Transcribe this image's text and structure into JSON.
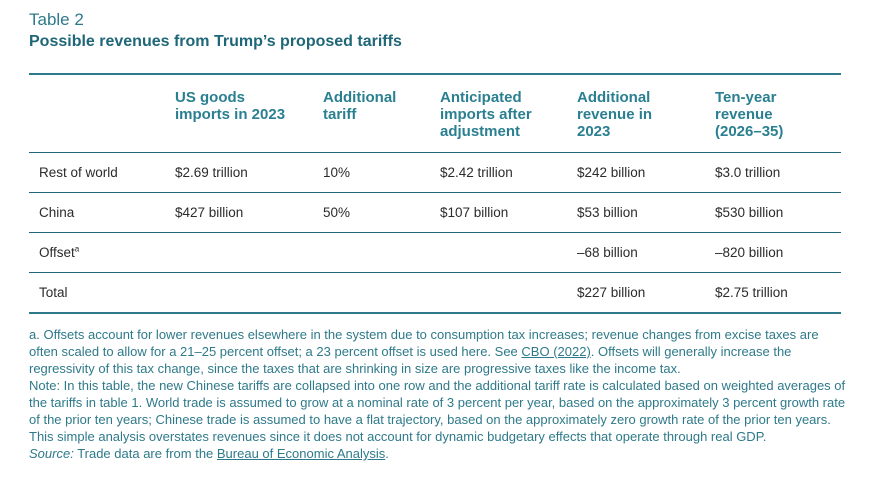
{
  "header": {
    "label": "Table 2",
    "title": "Possible revenues from Trump’s proposed tariffs"
  },
  "table": {
    "columns": [
      "",
      "US goods\nimports in 2023",
      "Additional\ntariff",
      "Anticipated\nimports after\nadjustment",
      "Additional\nrevenue in\n2023",
      "Ten-year\nrevenue\n(2026–35)"
    ],
    "rows": [
      {
        "label": "Rest of world",
        "sup": "",
        "cells": [
          "$2.69 trillion",
          "10%",
          "$2.42 trillion",
          "$242 billion",
          "$3.0 trillion"
        ]
      },
      {
        "label": "China",
        "sup": "",
        "cells": [
          "$427 billion",
          "50%",
          "$107 billion",
          "$53 billion",
          "$530 billion"
        ]
      },
      {
        "label": "Offset",
        "sup": "a",
        "cells": [
          "",
          "",
          "",
          "–68 billion",
          "–820 billion"
        ]
      },
      {
        "label": "Total",
        "sup": "",
        "cells": [
          "",
          "",
          "",
          "$227 billion",
          "$2.75 trillion"
        ]
      }
    ]
  },
  "notes": {
    "footnote_a_pre": "a. Offsets account for lower revenues elsewhere in the system due to consumption tax increases; revenue changes from excise taxes are often scaled to allow for a 21–25 percent offset; a 23 percent offset is used here. See ",
    "footnote_a_link": "CBO (2022)",
    "footnote_a_post": ". Offsets will generally increase the regressivity of this tax change, since the taxes that are shrinking in size are progressive taxes like the income tax.",
    "note": "Note: In this table, the new Chinese tariffs are collapsed into one row and the additional tariff rate is calculated based on weighted averages of the tariffs in table 1. World trade is assumed to grow at a nominal rate of 3 percent per year, based on the approximately 3 percent growth rate of the prior ten years; Chinese trade is assumed to have a flat trajectory, based on the approximately zero growth rate of the prior ten years. This simple analysis overstates revenues since it does not account for dynamic budgetary effects that operate through real GDP.",
    "source_label": "Source:",
    "source_pre": " Trade data are from the ",
    "source_link": "Bureau of Economic Analysis",
    "source_post": "."
  }
}
